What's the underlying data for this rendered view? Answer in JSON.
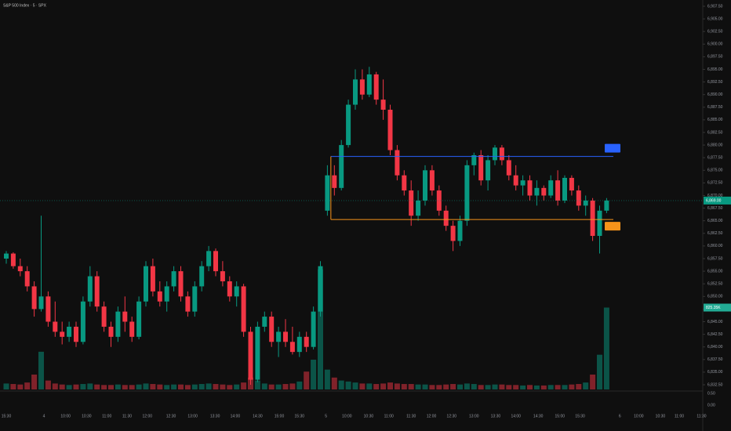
{
  "chart_data": {
    "type": "candlestick",
    "title": "S&P 500 Index · 5 · SPX",
    "open": [
      6857.5,
      6858.5,
      6856,
      6855,
      6852,
      6847.5,
      6850,
      6845,
      6843,
      6842,
      6844,
      6841,
      6849,
      6854,
      6848,
      6844,
      6842,
      6847,
      6845,
      6842,
      6849,
      6856,
      6851,
      6849,
      6852,
      6855,
      6850,
      6847,
      6852,
      6856,
      6859,
      6855,
      6853,
      6850,
      6852,
      6843,
      6833.5,
      6844,
      6846,
      6841,
      6843,
      6841,
      6839,
      6842,
      6840,
      6847,
      6867,
      6874,
      6871.5,
      6880,
      6888,
      6893,
      6890,
      6894,
      6889,
      6887,
      6879,
      6874,
      6871,
      6866,
      6869,
      6875,
      6871,
      6867,
      6864,
      6861,
      6865,
      6876,
      6878,
      6873,
      6877,
      6879.5,
      6877,
      6874,
      6872,
      6873,
      6870,
      6871.5,
      6870,
      6873,
      6869,
      6873.5,
      6871,
      6868,
      6869,
      6862,
      6867
    ],
    "high": [
      6859,
      6858.75,
      6857.5,
      6856,
      6853,
      6866,
      6851,
      6849,
      6845,
      6845,
      6845,
      6850,
      6856,
      6855,
      6849,
      6845,
      6848,
      6850,
      6846,
      6850,
      6857,
      6857.5,
      6853,
      6853,
      6856,
      6856,
      6851,
      6853,
      6857,
      6860,
      6859.5,
      6857,
      6854,
      6853,
      6852.5,
      6844,
      6845,
      6847,
      6847,
      6844,
      6845.5,
      6844,
      6843,
      6843,
      6848,
      6857,
      6876,
      6876,
      6881,
      6889,
      6895,
      6895,
      6895.5,
      6894.5,
      6893,
      6888,
      6880,
      6875,
      6873,
      6871,
      6876,
      6876,
      6872,
      6868,
      6865,
      6866,
      6877,
      6878.5,
      6879,
      6878,
      6880,
      6880,
      6878,
      6876,
      6874,
      6874,
      6873,
      6872,
      6874,
      6875,
      6874,
      6874,
      6872,
      6870,
      6869.5,
      6868,
      6869.5
    ],
    "low": [
      6856.5,
      6855.5,
      6854,
      6851,
      6846,
      6847,
      6844,
      6842,
      6840.5,
      6841,
      6840,
      6840.5,
      6848,
      6847,
      6843,
      6840,
      6841,
      6843,
      6841,
      6841.5,
      6848,
      6850,
      6848,
      6847,
      6851,
      6849,
      6846,
      6846,
      6851,
      6855,
      6854,
      6852,
      6849,
      6848,
      6842,
      6832.5,
      6833,
      6843,
      6840,
      6838,
      6840,
      6838.5,
      6838,
      6839,
      6839.5,
      6846,
      6866,
      6870,
      6871,
      6879.5,
      6887,
      6889,
      6889.5,
      6888,
      6885,
      6878,
      6873,
      6870,
      6864,
      6865,
      6868,
      6870,
      6866,
      6863,
      6859,
      6860,
      6864,
      6874,
      6872,
      6871,
      6876,
      6876,
      6873,
      6871,
      6870,
      6869,
      6868,
      6869,
      6869.5,
      6868,
      6868.5,
      6870,
      6867,
      6866,
      6861,
      6858.5,
      6866.5
    ],
    "close": [
      6858.5,
      6856,
      6855,
      6852,
      6847.5,
      6850,
      6845,
      6843,
      6842,
      6844,
      6841,
      6849,
      6854,
      6848,
      6844,
      6842,
      6847,
      6845,
      6842,
      6849,
      6856,
      6851,
      6849,
      6852,
      6855,
      6850,
      6847,
      6852,
      6856,
      6859,
      6855,
      6853,
      6850,
      6852,
      6843,
      6833.5,
      6844,
      6846,
      6841,
      6843,
      6841,
      6839,
      6842,
      6840,
      6847,
      6856,
      6874,
      6871.5,
      6880,
      6888,
      6893,
      6890,
      6894,
      6889,
      6887,
      6879,
      6874,
      6871,
      6866,
      6869,
      6875,
      6871,
      6867,
      6864,
      6861,
      6865,
      6876,
      6878,
      6873,
      6877,
      6879.5,
      6877,
      6874,
      6872,
      6873,
      6870,
      6871.5,
      6870,
      6873,
      6869,
      6873.5,
      6871,
      6868,
      6869,
      6862,
      6867,
      6869
    ],
    "volume": [
      60,
      55,
      50,
      70,
      150,
      380,
      90,
      60,
      50,
      45,
      50,
      55,
      60,
      50,
      45,
      45,
      50,
      45,
      45,
      50,
      60,
      55,
      50,
      45,
      50,
      50,
      45,
      50,
      55,
      60,
      55,
      50,
      45,
      50,
      70,
      120,
      90,
      60,
      50,
      50,
      55,
      60,
      80,
      180,
      300,
      1210,
      200,
      120,
      90,
      80,
      70,
      60,
      60,
      55,
      60,
      70,
      60,
      55,
      55,
      50,
      50,
      45,
      45,
      50,
      55,
      50,
      60,
      55,
      45,
      45,
      50,
      50,
      45,
      45,
      40,
      45,
      40,
      40,
      45,
      45,
      45,
      50,
      55,
      70,
      150,
      350,
      825
    ],
    "up_color": "#089981",
    "down_color": "#f23645",
    "ylim": [
      6832.5,
      6907.5
    ],
    "yticks": [
      {
        "value": 6907.5,
        "label": "6,907.50"
      },
      {
        "value": 6905,
        "label": "6,905.00"
      },
      {
        "value": 6902.5,
        "label": "6,902.50"
      },
      {
        "value": 6900,
        "label": "6,900.00"
      },
      {
        "value": 6897.5,
        "label": "6,897.50"
      },
      {
        "value": 6895,
        "label": "6,895.00"
      },
      {
        "value": 6892.5,
        "label": "6,892.50"
      },
      {
        "value": 6890,
        "label": "6,890.00"
      },
      {
        "value": 6887.5,
        "label": "6,887.50"
      },
      {
        "value": 6885,
        "label": "6,885.00"
      },
      {
        "value": 6882.5,
        "label": "6,882.50"
      },
      {
        "value": 6880,
        "label": "6,880.00"
      },
      {
        "value": 6877.5,
        "label": "6,877.50"
      },
      {
        "value": 6875,
        "label": "6,875.00"
      },
      {
        "value": 6872.5,
        "label": "6,872.50"
      },
      {
        "value": 6870,
        "label": "6,870.00"
      },
      {
        "value": 6867.5,
        "label": "6,867.50"
      },
      {
        "value": 6865,
        "label": "6,865.00"
      },
      {
        "value": 6862.5,
        "label": "6,862.50"
      },
      {
        "value": 6860,
        "label": "6,860.00"
      },
      {
        "value": 6857.5,
        "label": "6,857.50"
      },
      {
        "value": 6855,
        "label": "6,855.00"
      },
      {
        "value": 6852.5,
        "label": "6,852.50"
      },
      {
        "value": 6850,
        "label": "6,850.00"
      },
      {
        "value": 6847.5,
        "label": "6,847.50"
      },
      {
        "value": 6845,
        "label": "6,845.00"
      },
      {
        "value": 6842.5,
        "label": "6,842.50"
      },
      {
        "value": 6840,
        "label": "6,840.00"
      },
      {
        "value": 6837.5,
        "label": "6,837.50"
      },
      {
        "value": 6835,
        "label": "6,835.00"
      },
      {
        "value": 6832.5,
        "label": "6,832.50"
      }
    ],
    "pane_ticks": [
      {
        "value": 0.5,
        "label": "0.50"
      },
      {
        "value": 0,
        "label": "0.00"
      }
    ],
    "xticks": [
      {
        "value": 0,
        "label": "15:30"
      },
      {
        "value": 5.4,
        "label": "4"
      },
      {
        "value": 8.5,
        "label": "10:00"
      },
      {
        "value": 11.5,
        "label": "10:30"
      },
      {
        "value": 14.4,
        "label": "11:00"
      },
      {
        "value": 17.3,
        "label": "11:30"
      },
      {
        "value": 20.2,
        "label": "12:00"
      },
      {
        "value": 23.6,
        "label": "12:30"
      },
      {
        "value": 26.7,
        "label": "13:00"
      },
      {
        "value": 29.9,
        "label": "13:30"
      },
      {
        "value": 32.8,
        "label": "14:00"
      },
      {
        "value": 36,
        "label": "14:30"
      },
      {
        "value": 39.1,
        "label": "15:00"
      },
      {
        "value": 42,
        "label": "15:30"
      },
      {
        "value": 45.8,
        "label": "5"
      },
      {
        "value": 48.8,
        "label": "10:00"
      },
      {
        "value": 51.9,
        "label": "10:30"
      },
      {
        "value": 54.8,
        "label": "11:00"
      },
      {
        "value": 58,
        "label": "11:30"
      },
      {
        "value": 60.9,
        "label": "12:00"
      },
      {
        "value": 63.8,
        "label": "12:30"
      },
      {
        "value": 67,
        "label": "13:00"
      },
      {
        "value": 70.1,
        "label": "13:30"
      },
      {
        "value": 73,
        "label": "14:00"
      },
      {
        "value": 76.2,
        "label": "14:30"
      },
      {
        "value": 79.3,
        "label": "15:00"
      },
      {
        "value": 82.2,
        "label": "15:30"
      },
      {
        "value": 87.9,
        "label": "6"
      },
      {
        "value": 90.6,
        "label": "10:00"
      },
      {
        "value": 93.7,
        "label": "10:30"
      },
      {
        "value": 96.4,
        "label": "11:00"
      },
      {
        "value": 99.6,
        "label": "11:30"
      }
    ],
    "vlim": [
      0,
      1050
    ],
    "levels": [
      {
        "value": 6877.75,
        "color": "#2962ff"
      },
      {
        "value": 6865.25,
        "color": "#f7931a"
      }
    ],
    "last_price_label": "6,869.00",
    "volume_label": "825.35K"
  }
}
